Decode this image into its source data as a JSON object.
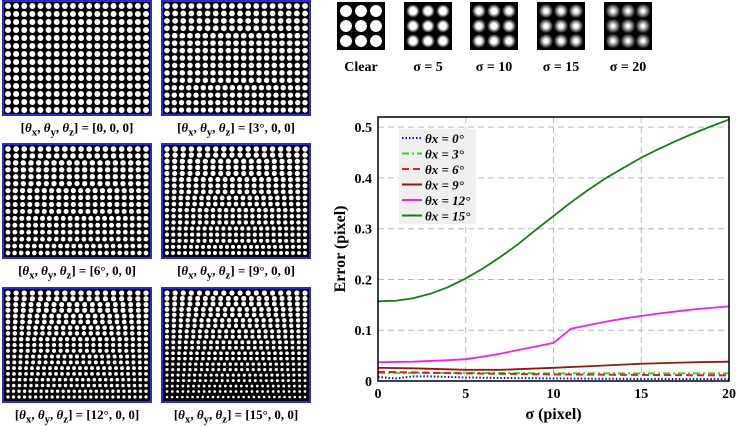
{
  "grids": [
    {
      "caption_html": "[θ<sub>x</sub>, θ<sub>y</sub>, θ<sub>z</sub>] = [0, 0, 0]",
      "theta_x": 0
    },
    {
      "caption_html": "[θ<sub>x</sub>, θ<sub>y</sub>, θ<sub>z</sub>] = [3°, 0, 0]",
      "theta_x": 3
    },
    {
      "caption_html": "[θ<sub>x</sub>, θ<sub>y</sub>, θ<sub>z</sub>] = [6°, 0, 0]",
      "theta_x": 6
    },
    {
      "caption_html": "[θ<sub>x</sub>, θ<sub>y</sub>, θ<sub>z</sub>] = [9°, 0, 0]",
      "theta_x": 9
    },
    {
      "caption_html": "[θ<sub>x</sub>, θ<sub>y</sub>, θ<sub>z</sub>] = [12°, 0, 0]",
      "theta_x": 12
    },
    {
      "caption_html": "[θ<sub>x</sub>, θ<sub>y</sub>, θ<sub>z</sub>] = [15°, 0, 0]",
      "theta_x": 15
    }
  ],
  "blur_samples": [
    {
      "label": "Clear",
      "sigma": 0
    },
    {
      "label": "σ = 5",
      "sigma": 5
    },
    {
      "label": "σ = 10",
      "sigma": 10
    },
    {
      "label": "σ = 15",
      "sigma": 15
    },
    {
      "label": "σ = 20",
      "sigma": 20
    }
  ],
  "chart_data": {
    "type": "line",
    "xlabel": "σ (pixel)",
    "ylabel": "Error (pixel)",
    "xlim": [
      0,
      20
    ],
    "ylim": [
      0,
      0.52
    ],
    "xticks": [
      0,
      5,
      10,
      15,
      20
    ],
    "yticks": [
      0,
      0.1,
      0.2,
      0.3,
      0.4,
      0.5
    ],
    "grid": true,
    "legend_position": "top-left",
    "series": [
      {
        "name": "θx = 0°",
        "color": "#1010c0",
        "style": "dotted",
        "x": [
          0,
          1,
          2,
          3,
          5,
          7,
          10,
          15,
          20
        ],
        "y": [
          0.008,
          0.005,
          0.009,
          0.009,
          0.007,
          0.006,
          0.005,
          0.004,
          0.004
        ]
      },
      {
        "name": "θx = 3°",
        "color": "#20e020",
        "style": "dashdot",
        "x": [
          0,
          5,
          10,
          15,
          20
        ],
        "y": [
          0.016,
          0.016,
          0.015,
          0.015,
          0.015
        ]
      },
      {
        "name": "θx = 6°",
        "color": "#e02020",
        "style": "dashed",
        "x": [
          0,
          5,
          10,
          15,
          20
        ],
        "y": [
          0.018,
          0.015,
          0.013,
          0.012,
          0.011
        ]
      },
      {
        "name": "θx = 9°",
        "color": "#8b1a10",
        "style": "solid",
        "x": [
          0,
          2,
          5,
          7,
          10,
          12,
          15,
          18,
          20
        ],
        "y": [
          0.026,
          0.025,
          0.022,
          0.022,
          0.026,
          0.029,
          0.034,
          0.037,
          0.038
        ]
      },
      {
        "name": "θx = 12°",
        "color": "#f020f0",
        "style": "solid",
        "x": [
          0,
          2,
          4,
          5,
          6,
          7,
          8,
          9,
          10,
          11,
          12,
          13,
          14,
          15,
          16,
          17,
          18,
          19,
          20
        ],
        "y": [
          0.037,
          0.038,
          0.041,
          0.043,
          0.048,
          0.054,
          0.061,
          0.068,
          0.075,
          0.103,
          0.11,
          0.117,
          0.123,
          0.128,
          0.133,
          0.137,
          0.141,
          0.144,
          0.147
        ]
      },
      {
        "name": "θx = 15°",
        "color": "#1a7a1a",
        "style": "solid",
        "x": [
          0,
          1,
          2,
          3,
          4,
          5,
          6,
          7,
          8,
          9,
          10,
          11,
          12,
          13,
          14,
          15,
          16,
          17,
          18,
          19,
          20
        ],
        "y": [
          0.157,
          0.158,
          0.163,
          0.172,
          0.185,
          0.202,
          0.222,
          0.245,
          0.27,
          0.298,
          0.325,
          0.352,
          0.377,
          0.4,
          0.42,
          0.44,
          0.457,
          0.473,
          0.488,
          0.502,
          0.515
        ]
      }
    ]
  }
}
